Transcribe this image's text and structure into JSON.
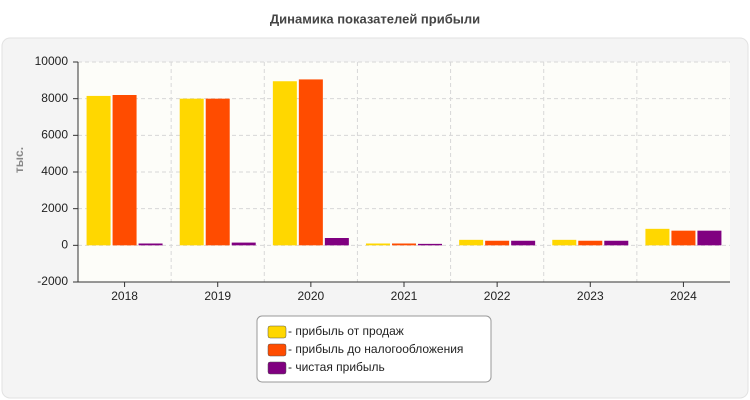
{
  "chart_data": {
    "type": "bar",
    "title": "Динамика показателей прибыли",
    "y_label": "тыс.",
    "categories": [
      "2018",
      "2019",
      "2020",
      "2021",
      "2022",
      "2023",
      "2024"
    ],
    "series": [
      {
        "name": "- прибыль от продаж",
        "color": "#ffd700",
        "values": [
          8150,
          8000,
          8950,
          100,
          300,
          300,
          900
        ]
      },
      {
        "name": "- прибыль до налогообложения",
        "color": "#ff4c00",
        "values": [
          8200,
          8000,
          9050,
          100,
          250,
          250,
          800
        ]
      },
      {
        "name": "- чистая прибыль",
        "color": "#800080",
        "values": [
          100,
          150,
          400,
          80,
          250,
          250,
          800
        ]
      }
    ],
    "ylim": [
      -2000,
      10000
    ],
    "yticks": [
      -2000,
      0,
      2000,
      4000,
      6000,
      8000,
      10000
    ],
    "grid": true
  }
}
